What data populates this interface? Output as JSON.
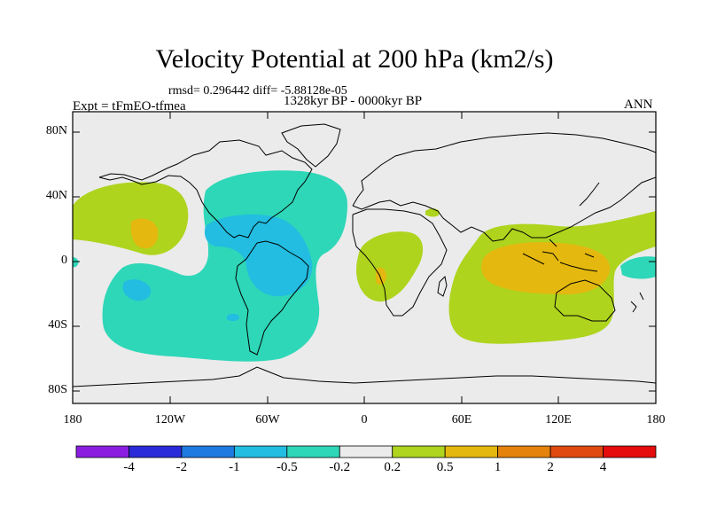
{
  "header": {
    "title": "Velocity Potential at 200 hPa (km2/s)",
    "stats": "rmsd= 0.296442 diff= -5.88128e-05",
    "experiment": "Expt = tFmEO-tfmea",
    "period": "1328kyr BP - 0000kyr BP",
    "season": "ANN"
  },
  "map": {
    "lat_ticks": [
      "80N",
      "40N",
      "0",
      "40S",
      "80S"
    ],
    "lon_ticks": [
      "180",
      "120W",
      "60W",
      "0",
      "60E",
      "120E",
      "180"
    ],
    "background_color": "#ebebeb"
  },
  "colorbar": {
    "labels": [
      "-4",
      "-2",
      "-1",
      "-0.5",
      "-0.2",
      "0.2",
      "0.5",
      "1",
      "2",
      "4"
    ],
    "colors": [
      "#8a1ee0",
      "#2a2ad8",
      "#1f7ae0",
      "#22bde0",
      "#2ed7b8",
      "#ebebeb",
      "#aed41e",
      "#e4b80e",
      "#e4820c",
      "#e04a10",
      "#e40c0c"
    ]
  }
}
